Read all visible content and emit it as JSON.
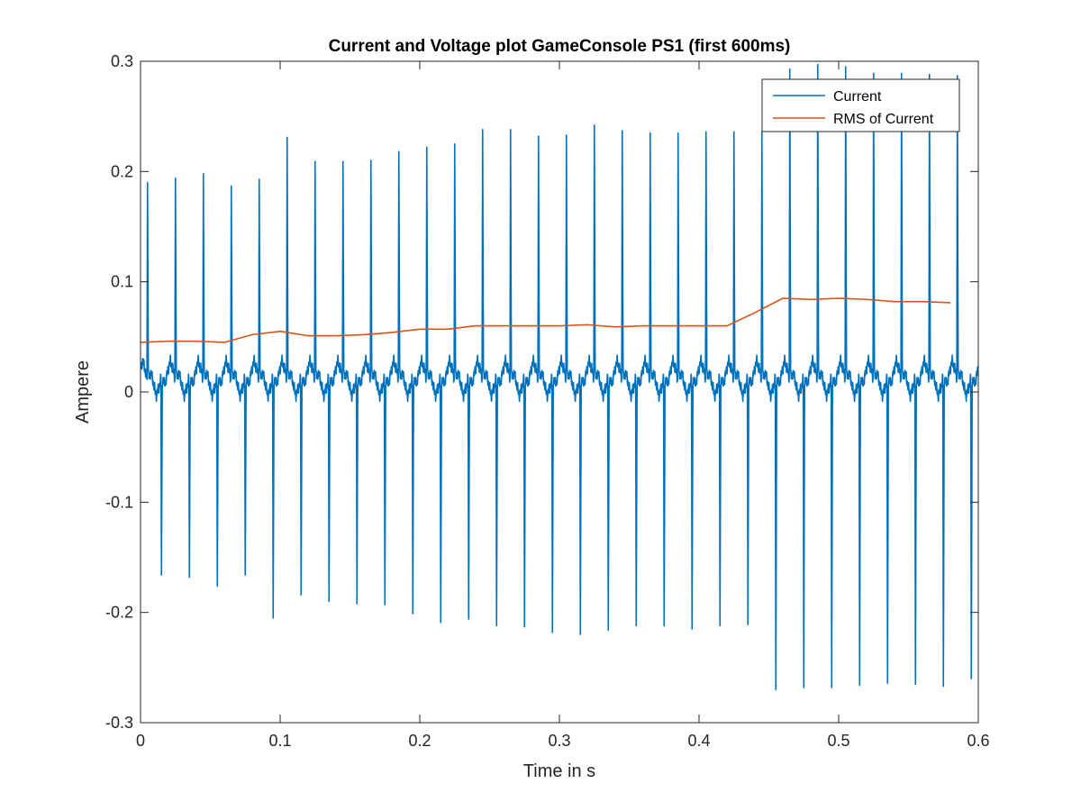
{
  "chart_data": {
    "type": "line",
    "title": "Current and Voltage plot GameConsole PS1 (first 600ms)",
    "xlabel": "Time in s",
    "ylabel": "Ampere",
    "xlim": [
      0,
      0.6
    ],
    "ylim": [
      -0.3,
      0.3
    ],
    "xticks": [
      0,
      0.1,
      0.2,
      0.3,
      0.4,
      0.5,
      0.6
    ],
    "xtick_labels": [
      "0",
      "0.1",
      "0.2",
      "0.3",
      "0.4",
      "0.5",
      "0.6"
    ],
    "yticks": [
      -0.3,
      -0.2,
      -0.1,
      0,
      0.1,
      0.2,
      0.3
    ],
    "ytick_labels": [
      "-0.3",
      "-0.2",
      "-0.1",
      "0",
      "0.1",
      "0.2",
      "0.3"
    ],
    "grid": false,
    "legend_position": "top-right",
    "series": [
      {
        "name": "Current",
        "color": "#0072BD",
        "baseline_range": [
          -0.005,
          0.03
        ],
        "period_s": 0.02,
        "positive_spikes": [
          {
            "t": 0.005,
            "v": 0.19
          },
          {
            "t": 0.025,
            "v": 0.194
          },
          {
            "t": 0.045,
            "v": 0.198
          },
          {
            "t": 0.065,
            "v": 0.187
          },
          {
            "t": 0.085,
            "v": 0.193
          },
          {
            "t": 0.105,
            "v": 0.231
          },
          {
            "t": 0.125,
            "v": 0.209
          },
          {
            "t": 0.145,
            "v": 0.209
          },
          {
            "t": 0.165,
            "v": 0.21
          },
          {
            "t": 0.185,
            "v": 0.218
          },
          {
            "t": 0.205,
            "v": 0.222
          },
          {
            "t": 0.225,
            "v": 0.225
          },
          {
            "t": 0.245,
            "v": 0.238
          },
          {
            "t": 0.265,
            "v": 0.238
          },
          {
            "t": 0.285,
            "v": 0.232
          },
          {
            "t": 0.305,
            "v": 0.233
          },
          {
            "t": 0.325,
            "v": 0.242
          },
          {
            "t": 0.345,
            "v": 0.237
          },
          {
            "t": 0.365,
            "v": 0.235
          },
          {
            "t": 0.385,
            "v": 0.235
          },
          {
            "t": 0.405,
            "v": 0.236
          },
          {
            "t": 0.425,
            "v": 0.236
          },
          {
            "t": 0.445,
            "v": 0.236
          },
          {
            "t": 0.465,
            "v": 0.293
          },
          {
            "t": 0.485,
            "v": 0.297
          },
          {
            "t": 0.505,
            "v": 0.295
          },
          {
            "t": 0.525,
            "v": 0.289
          },
          {
            "t": 0.545,
            "v": 0.289
          },
          {
            "t": 0.565,
            "v": 0.288
          },
          {
            "t": 0.585,
            "v": 0.287
          }
        ],
        "negative_spikes": [
          {
            "t": 0.015,
            "v": -0.166
          },
          {
            "t": 0.035,
            "v": -0.168
          },
          {
            "t": 0.055,
            "v": -0.176
          },
          {
            "t": 0.075,
            "v": -0.166
          },
          {
            "t": 0.095,
            "v": -0.205
          },
          {
            "t": 0.115,
            "v": -0.184
          },
          {
            "t": 0.135,
            "v": -0.19
          },
          {
            "t": 0.155,
            "v": -0.192
          },
          {
            "t": 0.175,
            "v": -0.193
          },
          {
            "t": 0.195,
            "v": -0.201
          },
          {
            "t": 0.215,
            "v": -0.209
          },
          {
            "t": 0.235,
            "v": -0.206
          },
          {
            "t": 0.255,
            "v": -0.212
          },
          {
            "t": 0.275,
            "v": -0.213
          },
          {
            "t": 0.295,
            "v": -0.218
          },
          {
            "t": 0.315,
            "v": -0.22
          },
          {
            "t": 0.335,
            "v": -0.216
          },
          {
            "t": 0.355,
            "v": -0.212
          },
          {
            "t": 0.375,
            "v": -0.212
          },
          {
            "t": 0.395,
            "v": -0.215
          },
          {
            "t": 0.415,
            "v": -0.212
          },
          {
            "t": 0.435,
            "v": -0.211
          },
          {
            "t": 0.455,
            "v": -0.27
          },
          {
            "t": 0.475,
            "v": -0.268
          },
          {
            "t": 0.495,
            "v": -0.268
          },
          {
            "t": 0.515,
            "v": -0.266
          },
          {
            "t": 0.535,
            "v": -0.264
          },
          {
            "t": 0.555,
            "v": -0.265
          },
          {
            "t": 0.575,
            "v": -0.267
          },
          {
            "t": 0.595,
            "v": -0.26
          }
        ]
      },
      {
        "name": "RMS of Current",
        "color": "#D95319",
        "x": [
          0,
          0.02,
          0.04,
          0.06,
          0.08,
          0.1,
          0.12,
          0.14,
          0.16,
          0.18,
          0.2,
          0.22,
          0.24,
          0.26,
          0.28,
          0.3,
          0.32,
          0.34,
          0.36,
          0.38,
          0.4,
          0.42,
          0.44,
          0.46,
          0.48,
          0.5,
          0.52,
          0.54,
          0.56,
          0.58
        ],
        "values": [
          0.045,
          0.046,
          0.046,
          0.045,
          0.052,
          0.055,
          0.051,
          0.051,
          0.052,
          0.054,
          0.057,
          0.057,
          0.06,
          0.06,
          0.06,
          0.06,
          0.061,
          0.059,
          0.06,
          0.06,
          0.06,
          0.06,
          0.072,
          0.085,
          0.084,
          0.085,
          0.084,
          0.082,
          0.082,
          0.081
        ]
      }
    ]
  }
}
